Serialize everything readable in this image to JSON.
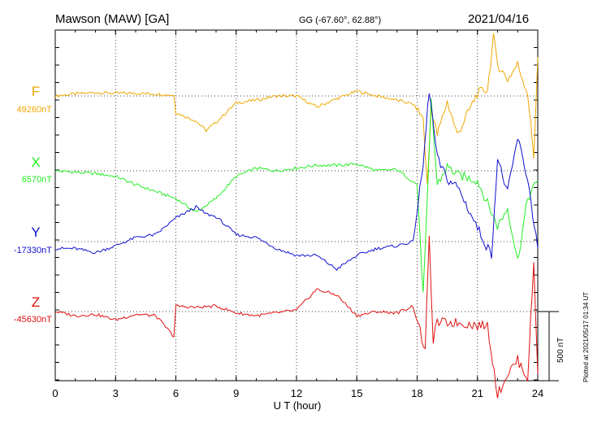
{
  "header": {
    "station": "Mawson (MAW)  [GA]",
    "coords": "GG (-67.60°,  62.88°)",
    "date": "2021/04/16"
  },
  "plotted_note": "Plotted at 2021/05/17 01:34 UT",
  "scale_label": "500 nT",
  "colors": {
    "F": "#f0a800",
    "X": "#22ee22",
    "Y": "#1010d0",
    "Z": "#e01010",
    "axis": "#000000",
    "grid": "#444444"
  },
  "chart_data": {
    "type": "line",
    "xlabel": "U T (hour)",
    "xlim": [
      0,
      24
    ],
    "xticks": [
      "0",
      "3",
      "6",
      "9",
      "12",
      "15",
      "18",
      "21",
      "24"
    ],
    "grid": true,
    "scale_bar_nT": 500,
    "series": [
      {
        "name": "F",
        "baseline_label": "49260nT",
        "color": "#f0a800",
        "x": [
          0,
          1,
          2,
          3,
          4,
          5,
          5.9,
          6,
          7,
          7.5,
          8,
          9,
          10,
          11,
          12,
          13,
          14,
          15,
          16,
          17,
          17.8,
          18.3,
          18.5,
          18.7,
          19,
          19.5,
          20,
          21,
          21.5,
          21.8,
          22,
          22.5,
          23,
          23.5,
          23.8,
          24
        ],
        "y": [
          0,
          15,
          25,
          20,
          20,
          15,
          5,
          -120,
          -180,
          -250,
          -190,
          -50,
          -30,
          0,
          0,
          -80,
          -20,
          35,
          0,
          -30,
          -60,
          -160,
          -650,
          -90,
          -280,
          -40,
          -280,
          20,
          50,
          420,
          230,
          120,
          230,
          20,
          -440,
          280
        ]
      },
      {
        "name": "X",
        "baseline_label": "6570nT",
        "color": "#22ee22",
        "x": [
          0,
          1,
          2,
          3,
          4,
          5,
          6,
          7,
          8,
          9,
          10,
          11,
          12,
          13,
          14,
          15,
          16,
          17,
          18,
          18.3,
          18.5,
          18.7,
          19,
          19.5,
          20,
          21,
          22,
          22.5,
          23,
          23.5,
          24
        ],
        "y": [
          0,
          -10,
          -20,
          -40,
          -100,
          -150,
          -200,
          -300,
          -200,
          -40,
          20,
          0,
          20,
          40,
          40,
          50,
          0,
          10,
          -100,
          -900,
          -250,
          500,
          -100,
          30,
          -30,
          -70,
          -400,
          -270,
          -650,
          -200,
          -70
        ]
      },
      {
        "name": "Y",
        "baseline_label": "-17330nT",
        "color": "#1010d0",
        "x": [
          0,
          1,
          2,
          3,
          4,
          5,
          6,
          7,
          7.5,
          8,
          9,
          10,
          11,
          12,
          13,
          14,
          15,
          16,
          17,
          17.8,
          18.3,
          18.6,
          19,
          19.5,
          20,
          21,
          21.7,
          22,
          22.5,
          23,
          23.5,
          24
        ],
        "y": [
          -50,
          -50,
          -80,
          -30,
          30,
          50,
          170,
          250,
          200,
          180,
          50,
          30,
          -50,
          -100,
          -100,
          -200,
          -100,
          -50,
          -30,
          0,
          550,
          1100,
          600,
          450,
          400,
          100,
          -100,
          600,
          350,
          750,
          450,
          -50
        ]
      },
      {
        "name": "Z",
        "baseline_label": "-45630nT",
        "color": "#e01010",
        "x": [
          0,
          1,
          2,
          3,
          4,
          5,
          5.9,
          6,
          7,
          8,
          9,
          10,
          11,
          12,
          13,
          14,
          15,
          16,
          17,
          17.8,
          18.4,
          18.6,
          18.8,
          19,
          20,
          21,
          21.5,
          22,
          22.5,
          23,
          23.5,
          23.8,
          24
        ],
        "y": [
          0,
          -30,
          -20,
          -60,
          -20,
          -30,
          -180,
          40,
          30,
          40,
          -10,
          -30,
          -10,
          10,
          160,
          120,
          -30,
          0,
          -10,
          40,
          -280,
          520,
          -200,
          -80,
          -80,
          -100,
          -100,
          -600,
          -450,
          -350,
          -480,
          350,
          -450
        ]
      }
    ]
  }
}
